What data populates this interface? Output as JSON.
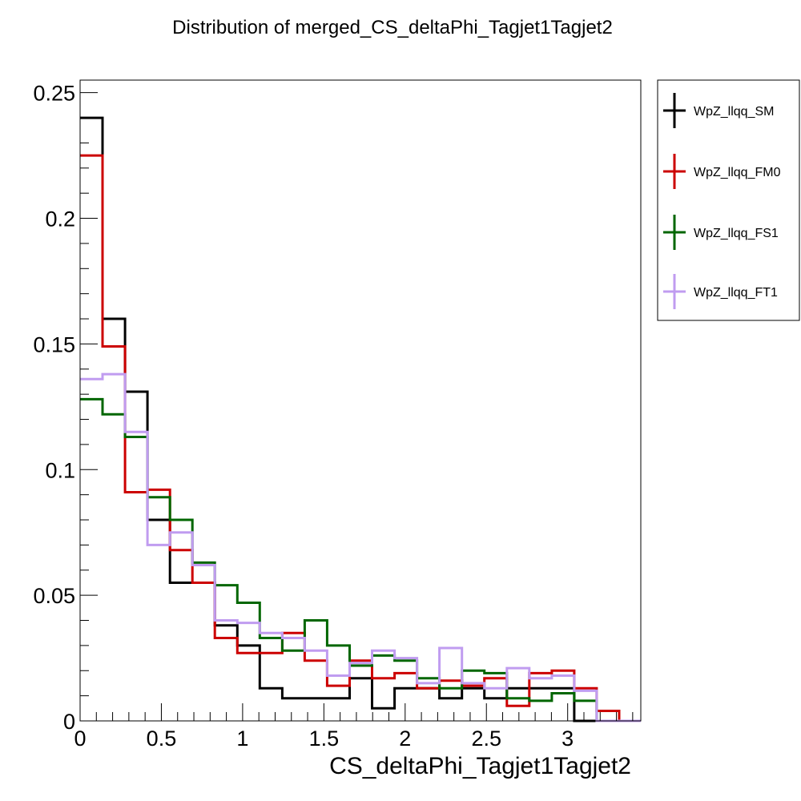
{
  "chart_data": {
    "type": "line",
    "title": "Distribution of merged_CS_deltaPhi_Tagjet1Tagjet2",
    "xlabel": "CS_deltaPhi_Tagjet1Tagjet2",
    "ylabel": "",
    "xlim": [
      0,
      3.45
    ],
    "ylim": [
      0,
      0.255
    ],
    "x_ticks": [
      0,
      0.5,
      1,
      1.5,
      2,
      2.5,
      3
    ],
    "x_tick_labels": [
      "0",
      "0.5",
      "1",
      "1.5",
      "2",
      "2.5",
      "3"
    ],
    "y_ticks": [
      0,
      0.05,
      0.1,
      0.15,
      0.2,
      0.25
    ],
    "y_tick_labels": [
      "0",
      "0.05",
      "0.1",
      "0.15",
      "0.2",
      "0.25"
    ],
    "bin_width": 0.1382,
    "grid": false,
    "legend_position": "right-outside-top",
    "series": [
      {
        "name": "WpZ_llqq_SM",
        "color": "#000000",
        "values": [
          0.24,
          0.16,
          0.131,
          0.08,
          0.055,
          0.055,
          0.038,
          0.03,
          0.013,
          0.009,
          0.009,
          0.009,
          0.017,
          0.005,
          0.013,
          0.013,
          0.009,
          0.013,
          0.009,
          0.013,
          0.013,
          0.013,
          0.0,
          0.0,
          0.0
        ]
      },
      {
        "name": "WpZ_llqq_FM0",
        "color": "#cc0000",
        "values": [
          0.225,
          0.149,
          0.091,
          0.092,
          0.068,
          0.055,
          0.033,
          0.027,
          0.027,
          0.035,
          0.024,
          0.014,
          0.024,
          0.017,
          0.019,
          0.013,
          0.016,
          0.014,
          0.017,
          0.006,
          0.019,
          0.02,
          0.013,
          0.004,
          0.0
        ]
      },
      {
        "name": "WpZ_llqq_FS1",
        "color": "#006600",
        "values": [
          0.128,
          0.122,
          0.113,
          0.089,
          0.08,
          0.063,
          0.054,
          0.047,
          0.033,
          0.028,
          0.04,
          0.03,
          0.022,
          0.026,
          0.024,
          0.017,
          0.013,
          0.02,
          0.019,
          0.009,
          0.008,
          0.011,
          0.008,
          0.0,
          0.0
        ]
      },
      {
        "name": "WpZ_llqq_FT1",
        "color": "#c09cf0",
        "values": [
          0.136,
          0.138,
          0.115,
          0.07,
          0.075,
          0.062,
          0.04,
          0.039,
          0.035,
          0.033,
          0.028,
          0.018,
          0.023,
          0.028,
          0.025,
          0.015,
          0.029,
          0.015,
          0.013,
          0.021,
          0.017,
          0.018,
          0.012,
          0.0,
          0.0
        ]
      }
    ]
  }
}
